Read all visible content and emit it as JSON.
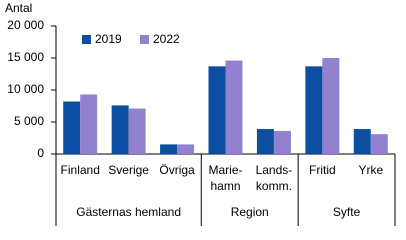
{
  "chart_data": {
    "type": "bar",
    "y_axis_label": "Antal",
    "categories": [
      "Finland",
      "Sverige",
      "Övriga",
      "Marie-\nhamn",
      "Lands-\nkomm.",
      "Fritid",
      "Yrke"
    ],
    "groups": [
      {
        "name": "Gästernas hemland",
        "size": 3
      },
      {
        "name": "Region",
        "size": 2
      },
      {
        "name": "Syfte",
        "size": 2
      }
    ],
    "series": [
      {
        "name": "2019",
        "color": "#0b4ea2",
        "values": [
          8200,
          7600,
          1500,
          13700,
          3900,
          13700,
          3900
        ]
      },
      {
        "name": "2022",
        "color": "#9381d0",
        "values": [
          9300,
          7100,
          1500,
          14600,
          3600,
          15000,
          3100
        ]
      }
    ],
    "ylim": [
      0,
      20000
    ],
    "yticks": [
      0,
      {
        "value": 5000,
        "label": "5 000"
      },
      {
        "value": 10000,
        "label": "10 000"
      },
      {
        "value": 15000,
        "label": "15 000"
      },
      {
        "value": 20000,
        "label": "20 000"
      }
    ],
    "grid": false,
    "legend": "top-left"
  }
}
